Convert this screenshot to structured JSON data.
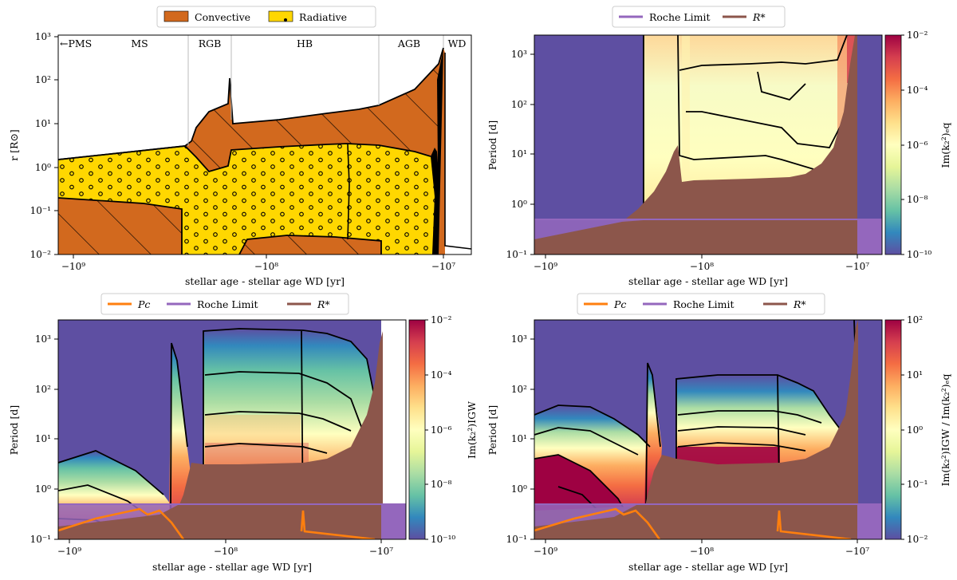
{
  "colors": {
    "convective": "#d2691e",
    "radiative": "#ffd700",
    "roche": "#9467bd",
    "rstar": "#8c564b",
    "pc": "#ff7f0e",
    "nodata": "#5e4fa2"
  },
  "chart_data": [
    {
      "type": "area",
      "id": "panel-a",
      "ylabel": "r [R⊙]",
      "xlabel": "stellar age - stellar age WD [yr]",
      "yscale": "log",
      "ylim": [
        0.01,
        1000
      ],
      "xticks": [
        "−10⁹",
        "−10⁸",
        "−10⁷"
      ],
      "yticks": [
        "10⁻²",
        "10⁻¹",
        "10⁰",
        "10¹",
        "10²",
        "10³"
      ],
      "legend": [
        "Convective",
        "Radiative"
      ],
      "phases": [
        "←PMS",
        "MS",
        "RGB",
        "HB",
        "AGB",
        "WD"
      ]
    },
    {
      "type": "heatmap",
      "id": "panel-b",
      "ylabel": "Period [d]",
      "xlabel": "stellar age - stellar age WD [yr]",
      "yscale": "log",
      "ylim": [
        0.1,
        2500
      ],
      "xticks": [
        "−10⁹",
        "−10⁸",
        "−10⁷"
      ],
      "yticks": [
        "10⁻¹",
        "10⁰",
        "10¹",
        "10²",
        "10³"
      ],
      "legend": [
        "Roche Limit",
        "R*"
      ],
      "colorbar_label": "Im(k₂²)ₑq",
      "colorbar_ticks": [
        "10⁻²",
        "10⁻⁴",
        "10⁻⁶",
        "10⁻⁸",
        "10⁻¹⁰"
      ]
    },
    {
      "type": "heatmap",
      "id": "panel-c",
      "ylabel": "Period [d]",
      "xlabel": "stellar age - stellar age WD [yr]",
      "yscale": "log",
      "ylim": [
        0.1,
        2500
      ],
      "xticks": [
        "−10⁹",
        "−10⁸",
        "−10⁷"
      ],
      "yticks": [
        "10⁻¹",
        "10⁰",
        "10¹",
        "10²",
        "10³"
      ],
      "legend": [
        "Pc",
        "Roche Limit",
        "R*"
      ],
      "colorbar_label": "Im(k₂²)IGW",
      "colorbar_ticks": [
        "10⁻²",
        "10⁻⁴",
        "10⁻⁶",
        "10⁻⁸",
        "10⁻¹⁰"
      ]
    },
    {
      "type": "heatmap",
      "id": "panel-d",
      "ylabel": "Period [d]",
      "xlabel": "stellar age - stellar age WD [yr]",
      "yscale": "log",
      "ylim": [
        0.1,
        2500
      ],
      "xticks": [
        "−10⁹",
        "−10⁸",
        "−10⁷"
      ],
      "yticks": [
        "10⁻¹",
        "10⁰",
        "10¹",
        "10²",
        "10³"
      ],
      "legend": [
        "Pc",
        "Roche Limit",
        "R*"
      ],
      "colorbar_label": "Im(k₂²)IGW / Im(k₂²)ₑq",
      "colorbar_ticks": [
        "10²",
        "10¹",
        "10⁰",
        "10⁻¹",
        "10⁻²"
      ]
    }
  ]
}
